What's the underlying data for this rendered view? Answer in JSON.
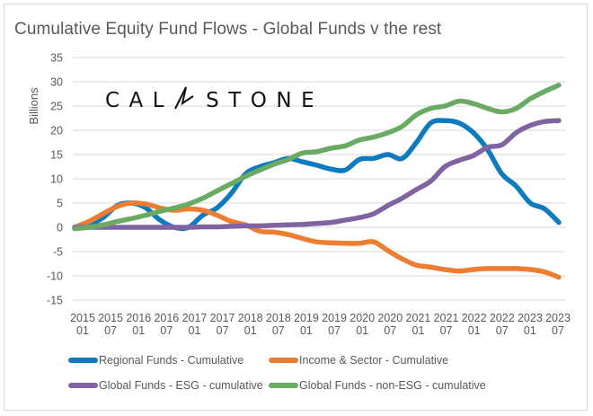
{
  "chart_data": {
    "type": "line",
    "title": "Cumulative Equity Fund Flows - Global Funds v the rest",
    "xlabel": "",
    "ylabel": "Billions",
    "ylim": [
      -15,
      35
    ],
    "yticks": [
      35,
      30,
      25,
      20,
      15,
      10,
      5,
      0,
      -5,
      -10,
      -15
    ],
    "grid": true,
    "legend_position": "bottom",
    "xtick_labels": [
      [
        "2015",
        "01"
      ],
      [
        "2015",
        "07"
      ],
      [
        "2016",
        "01"
      ],
      [
        "2016",
        "07"
      ],
      [
        "2017",
        "01"
      ],
      [
        "2017",
        "07"
      ],
      [
        "2018",
        "01"
      ],
      [
        "2018",
        "07"
      ],
      [
        "2019",
        "01"
      ],
      [
        "2019",
        "07"
      ],
      [
        "2020",
        "01"
      ],
      [
        "2020",
        "07"
      ],
      [
        "2021",
        "01"
      ],
      [
        "2021",
        "07"
      ],
      [
        "2022",
        "01"
      ],
      [
        "2022",
        "07"
      ],
      [
        "2023",
        "01"
      ],
      [
        "2023",
        "07"
      ]
    ],
    "x": [
      "2015-01",
      "2015-04",
      "2015-07",
      "2015-10",
      "2016-01",
      "2016-04",
      "2016-07",
      "2016-10",
      "2017-01",
      "2017-04",
      "2017-07",
      "2017-10",
      "2018-01",
      "2018-04",
      "2018-07",
      "2018-10",
      "2019-01",
      "2019-04",
      "2019-07",
      "2019-10",
      "2020-01",
      "2020-04",
      "2020-07",
      "2020-10",
      "2021-01",
      "2021-04",
      "2021-07",
      "2021-10",
      "2022-01",
      "2022-04",
      "2022-07",
      "2022-10",
      "2023-01",
      "2023-04",
      "2023-07"
    ],
    "series": [
      {
        "name": "Regional Funds - Cumulative",
        "color": "#0F7BBF",
        "values": [
          0,
          0.5,
          2,
          4.5,
          5,
          4,
          1.5,
          0,
          0,
          2.5,
          4,
          7,
          11,
          12.5,
          13.3,
          14.2,
          13.5,
          12.8,
          12,
          11.8,
          14,
          14.2,
          15,
          14.2,
          17.5,
          21.5,
          22,
          21.5,
          19.5,
          16,
          11,
          8.5,
          5,
          3.8,
          1
        ]
      },
      {
        "name": "Income & Sector - Cumulative",
        "color": "#ED7D31",
        "values": [
          0,
          1.2,
          2.8,
          4.3,
          5,
          4.8,
          4,
          3.5,
          3.8,
          3.5,
          2.5,
          1.2,
          0.5,
          -0.8,
          -1,
          -1.5,
          -2.3,
          -3,
          -3.2,
          -3.3,
          -3.3,
          -3,
          -4.8,
          -6.5,
          -7.8,
          -8.2,
          -8.7,
          -9,
          -8.7,
          -8.5,
          -8.5,
          -8.5,
          -8.7,
          -9.2,
          -10.3
        ]
      },
      {
        "name": "Global Funds - ESG - cumulative",
        "color": "#8064A2",
        "values": [
          0,
          0,
          0,
          0,
          0,
          0,
          0,
          0,
          0,
          0.1,
          0.1,
          0.2,
          0.3,
          0.3,
          0.4,
          0.5,
          0.6,
          0.8,
          1,
          1.5,
          2,
          2.8,
          4.5,
          6,
          7.8,
          9.5,
          12.5,
          13.8,
          14.8,
          16.5,
          17,
          19.5,
          21,
          21.8,
          22
        ]
      },
      {
        "name": "Global Funds - non-ESG - cumulative",
        "color": "#6AAB64",
        "values": [
          -0.3,
          0,
          0.5,
          1.2,
          1.8,
          2.5,
          3.3,
          4,
          4.8,
          6,
          7.5,
          9,
          10.5,
          11.8,
          13,
          14,
          15.3,
          15.6,
          16.3,
          16.8,
          18,
          18.6,
          19.5,
          20.8,
          23.2,
          24.5,
          25,
          26,
          25.5,
          24.5,
          23.8,
          24.5,
          26.5,
          28,
          29.3
        ]
      }
    ]
  },
  "logo_text": "CALASTONE",
  "legend": [
    {
      "label": "Regional Funds - Cumulative",
      "color": "#0F7BBF"
    },
    {
      "label": "Income & Sector - Cumulative",
      "color": "#ED7D31"
    },
    {
      "label": "Global Funds - ESG - cumulative",
      "color": "#8064A2"
    },
    {
      "label": "Global Funds - non-ESG - cumulative",
      "color": "#6AAB64"
    }
  ]
}
